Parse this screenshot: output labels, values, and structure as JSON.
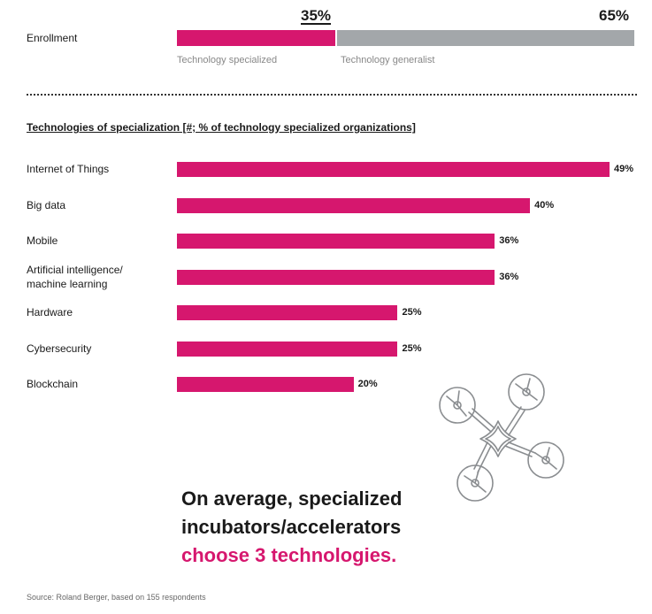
{
  "colors": {
    "accent": "#d6176e",
    "gray": "#a3a7aa",
    "text": "#1a1a1a"
  },
  "enrollment": {
    "label": "Enrollment",
    "specialized": {
      "pct_label": "35%",
      "value": 35,
      "sublabel": "Technology specialized"
    },
    "generalist": {
      "pct_label": "65%",
      "value": 65,
      "sublabel": "Technology generalist"
    }
  },
  "chart_data": {
    "type": "bar",
    "orientation": "horizontal",
    "title": "Technologies of specialization [#; % of technology specialized organizations]",
    "categories": [
      "Internet of Things",
      "Big data",
      "Mobile",
      "Artificial intelligence/\nmachine learning",
      "Hardware",
      "Cybersecurity",
      "Blockchain"
    ],
    "values": [
      49,
      40,
      36,
      36,
      25,
      25,
      20
    ],
    "value_labels": [
      "49%",
      "40%",
      "36%",
      "36%",
      "25%",
      "25%",
      "20%"
    ],
    "xlim": [
      0,
      49
    ]
  },
  "headline": {
    "line1": "On average, specialized",
    "line2": "incubators/accelerators",
    "line3": "choose 3 technologies."
  },
  "illustration": {
    "icon": "drone-icon"
  },
  "source": "Source: Roland Berger, based on 155 respondents"
}
